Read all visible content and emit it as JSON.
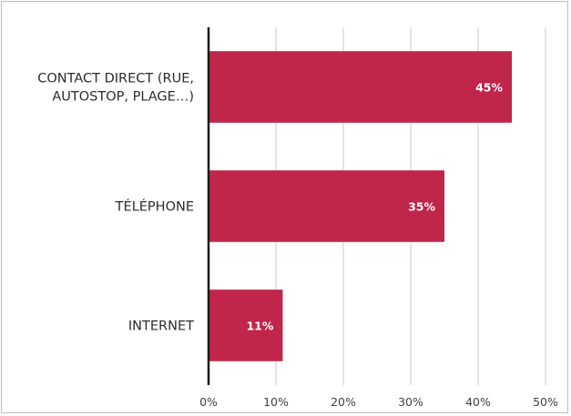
{
  "chart_data": {
    "type": "bar",
    "orientation": "horizontal",
    "categories": [
      "CONTACT DIRECT (RUE, AUTOSTOP, PLAGE…)",
      "TÉLÉPHONE",
      "INTERNET"
    ],
    "category_lines": [
      [
        "CONTACT DIRECT (RUE,",
        "AUTOSTOP, PLAGE…)"
      ],
      [
        "TÉLÉPHONE"
      ],
      [
        "INTERNET"
      ]
    ],
    "values": [
      45,
      35,
      11
    ],
    "data_labels": [
      "45%",
      "35%",
      "11%"
    ],
    "x_ticks": [
      "0%",
      "10%",
      "20%",
      "30%",
      "40%",
      "50%"
    ],
    "xlim": [
      0,
      50
    ],
    "grid": "vertical",
    "legend": "none",
    "bar_color": "#c0254a"
  }
}
